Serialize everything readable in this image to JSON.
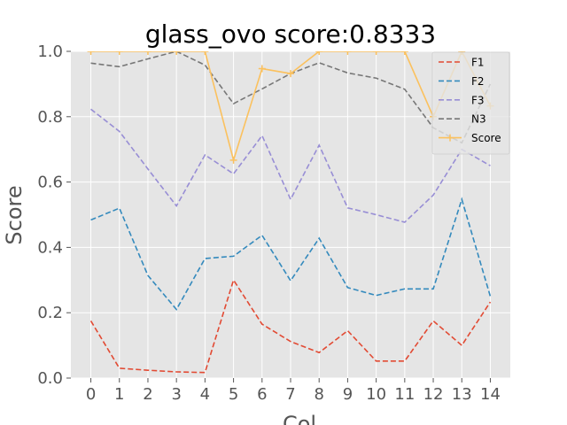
{
  "chart_data": {
    "type": "line",
    "title": "glass_ovo score:0.8333",
    "xlabel": "Col",
    "ylabel": "Score",
    "x": [
      0,
      1,
      2,
      3,
      4,
      5,
      6,
      7,
      8,
      9,
      10,
      11,
      12,
      13,
      14
    ],
    "xlim": [
      -0.7,
      14.7
    ],
    "ylim": [
      0,
      1.0
    ],
    "yticks": [
      "0.0",
      "0.2",
      "0.4",
      "0.6",
      "0.8",
      "1.0"
    ],
    "grid": true,
    "legend_position": "top-right",
    "series": [
      {
        "name": "F1",
        "color": "#E24A33",
        "style": "dashed",
        "marker": "none",
        "values": [
          0.175,
          0.03,
          0.024,
          0.019,
          0.017,
          0.3,
          0.165,
          0.112,
          0.078,
          0.145,
          0.052,
          0.052,
          0.175,
          0.1,
          0.233
        ]
      },
      {
        "name": "F2",
        "color": "#348ABD",
        "style": "dashed",
        "marker": "none",
        "values": [
          0.484,
          0.52,
          0.314,
          0.21,
          0.366,
          0.373,
          0.437,
          0.298,
          0.428,
          0.277,
          0.253,
          0.273,
          0.273,
          0.547,
          0.25
        ]
      },
      {
        "name": "F3",
        "color": "#988ED5",
        "style": "dashed",
        "marker": "none",
        "values": [
          0.823,
          0.755,
          0.64,
          0.527,
          0.683,
          0.625,
          0.742,
          0.547,
          0.713,
          0.521,
          0.5,
          0.477,
          0.56,
          0.7,
          0.65
        ]
      },
      {
        "name": "N3",
        "color": "#777777",
        "style": "dashed",
        "marker": "none",
        "values": [
          0.964,
          0.953,
          0.977,
          1.0,
          0.958,
          0.84,
          0.885,
          0.932,
          0.965,
          0.934,
          0.918,
          0.884,
          0.766,
          0.72,
          0.9
        ]
      },
      {
        "name": "Score",
        "color": "#FBC15E",
        "style": "solid",
        "marker": "plus",
        "values": [
          1.0,
          1.0,
          1.0,
          1.0,
          1.0,
          0.667,
          0.947,
          0.932,
          1.0,
          1.0,
          1.0,
          1.0,
          0.8,
          1.0,
          0.833
        ]
      }
    ]
  }
}
